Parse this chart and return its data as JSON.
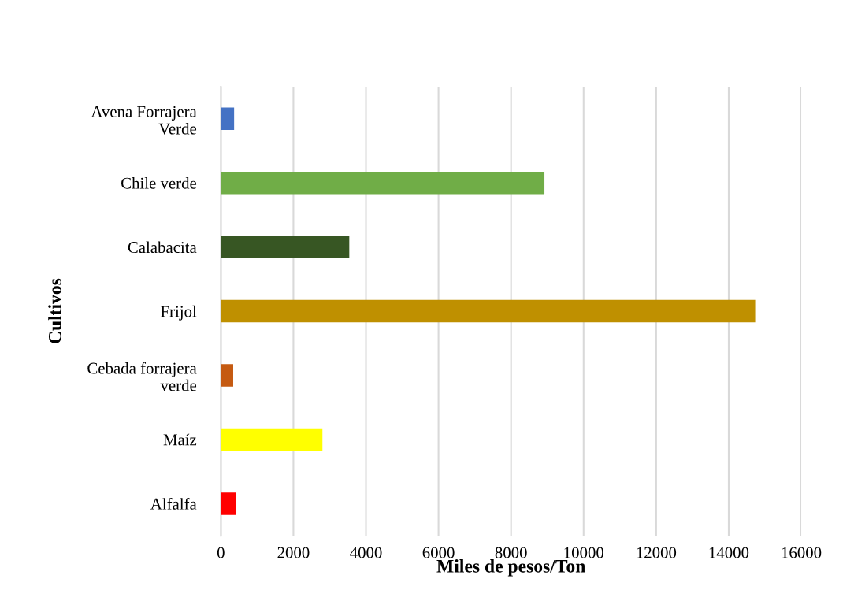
{
  "chart_data": {
    "type": "bar",
    "orientation": "horizontal",
    "xlabel": "Miles de pesos/Ton",
    "ylabel": "Cultivos",
    "categories": [
      "Avena Forrajera Verde",
      "Chile verde",
      "Calabacita",
      "Frijol",
      "Cebada forrajera verde",
      "Maíz",
      "Alfalfa"
    ],
    "values": [
      365,
      8920,
      3540,
      14730,
      340,
      2800,
      410
    ],
    "colors": [
      "#4472c4",
      "#70ad47",
      "#375623",
      "#bf9000",
      "#c55a11",
      "#ffff00",
      "#ff0000"
    ],
    "xlim": [
      0,
      16000
    ],
    "xticks": [
      0,
      2000,
      4000,
      6000,
      8000,
      10000,
      12000,
      14000,
      16000
    ],
    "grid": "x",
    "legend": false
  }
}
